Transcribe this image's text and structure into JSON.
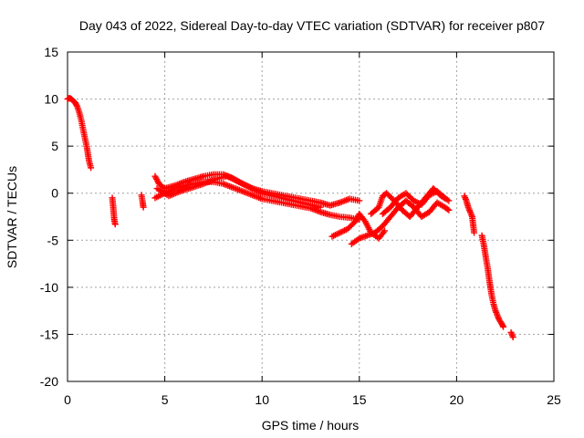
{
  "chart_data": {
    "type": "scatter",
    "title": "Day 043 of 2022, Sidereal Day-to-day VTEC variation (SDTVAR) for receiver p807",
    "xlabel": "GPS time / hours",
    "ylabel": "SDTVAR / TECUs",
    "xlim": [
      0,
      25
    ],
    "ylim": [
      -20,
      15
    ],
    "xticks": [
      "0",
      "5",
      "10",
      "15",
      "20",
      "25"
    ],
    "yticks": [
      "-20",
      "-15",
      "-10",
      "-5",
      "0",
      "5",
      "10",
      "15"
    ],
    "grid": true,
    "marker": "+",
    "color": "#ff0000",
    "series": [
      {
        "name": "SDTVAR",
        "segments": [
          [
            [
              0.0,
              10.0
            ],
            [
              0.1,
              10.1
            ],
            [
              0.2,
              10.0
            ],
            [
              0.3,
              9.8
            ],
            [
              0.4,
              9.6
            ],
            [
              0.5,
              9.2
            ],
            [
              0.6,
              8.6
            ],
            [
              0.7,
              7.8
            ],
            [
              0.8,
              6.8
            ],
            [
              0.9,
              5.8
            ],
            [
              1.0,
              4.8
            ],
            [
              1.1,
              3.5
            ],
            [
              1.2,
              2.7
            ]
          ],
          [
            [
              2.3,
              -0.5
            ],
            [
              2.35,
              -1.5
            ],
            [
              2.4,
              -2.8
            ],
            [
              2.45,
              -3.3
            ]
          ],
          [
            [
              3.8,
              -0.2
            ],
            [
              3.85,
              -0.8
            ],
            [
              3.9,
              -1.5
            ]
          ],
          [
            [
              4.5,
              1.8
            ],
            [
              4.7,
              1.0
            ],
            [
              5.0,
              0.5
            ],
            [
              5.5,
              0.8
            ],
            [
              6.0,
              1.2
            ],
            [
              6.5,
              1.5
            ],
            [
              7.0,
              1.8
            ],
            [
              7.5,
              2.0
            ],
            [
              8.0,
              2.0
            ],
            [
              8.5,
              1.6
            ],
            [
              9.0,
              1.0
            ],
            [
              9.5,
              0.5
            ],
            [
              10.0,
              0.2
            ],
            [
              10.5,
              0.0
            ],
            [
              11.0,
              -0.2
            ],
            [
              11.5,
              -0.4
            ],
            [
              12.0,
              -0.6
            ],
            [
              12.5,
              -0.8
            ],
            [
              13.0,
              -1.0
            ],
            [
              13.5,
              -1.3
            ],
            [
              14.0,
              -1.0
            ],
            [
              14.5,
              -0.6
            ],
            [
              15.0,
              -0.8
            ]
          ],
          [
            [
              4.5,
              -0.5
            ],
            [
              5.0,
              0.0
            ],
            [
              5.5,
              0.5
            ],
            [
              6.0,
              0.8
            ],
            [
              6.5,
              1.0
            ],
            [
              7.0,
              1.2
            ],
            [
              7.5,
              1.2
            ],
            [
              8.0,
              1.0
            ],
            [
              8.5,
              0.6
            ],
            [
              9.0,
              0.2
            ],
            [
              9.5,
              -0.2
            ],
            [
              10.0,
              -0.6
            ],
            [
              10.5,
              -0.8
            ],
            [
              11.0,
              -1.0
            ],
            [
              11.5,
              -1.2
            ],
            [
              12.0,
              -1.4
            ],
            [
              12.5,
              -1.6
            ],
            [
              13.0,
              -2.0
            ],
            [
              13.5,
              -2.3
            ],
            [
              14.0,
              -2.5
            ],
            [
              14.5,
              -2.6
            ],
            [
              15.0,
              -2.8
            ]
          ],
          [
            [
              4.6,
              0.5
            ],
            [
              5.2,
              -0.3
            ],
            [
              5.8,
              0.2
            ],
            [
              6.4,
              0.6
            ],
            [
              7.0,
              1.0
            ],
            [
              7.6,
              1.5
            ],
            [
              8.2,
              1.8
            ],
            [
              8.8,
              1.2
            ],
            [
              9.4,
              0.6
            ],
            [
              10.0,
              0.0
            ],
            [
              10.6,
              -0.3
            ],
            [
              11.2,
              -0.6
            ],
            [
              11.8,
              -0.9
            ],
            [
              12.4,
              -1.2
            ],
            [
              13.0,
              -1.5
            ]
          ],
          [
            [
              13.6,
              -4.6
            ],
            [
              14.0,
              -4.2
            ],
            [
              14.4,
              -3.8
            ],
            [
              14.8,
              -3.0
            ],
            [
              15.0,
              -2.2
            ],
            [
              15.3,
              -3.0
            ],
            [
              15.6,
              -4.2
            ],
            [
              16.0,
              -4.8
            ],
            [
              16.3,
              -4.0
            ]
          ],
          [
            [
              14.6,
              -5.4
            ],
            [
              15.0,
              -4.8
            ],
            [
              15.4,
              -4.5
            ],
            [
              15.8,
              -4.2
            ],
            [
              16.2,
              -3.5
            ],
            [
              16.6,
              -2.5
            ],
            [
              17.0,
              -1.5
            ],
            [
              17.4,
              -0.8
            ],
            [
              17.8,
              -1.5
            ],
            [
              18.2,
              -2.5
            ],
            [
              18.6,
              -2.0
            ],
            [
              19.0,
              -1.0
            ],
            [
              19.4,
              -1.5
            ],
            [
              19.6,
              -1.8
            ]
          ],
          [
            [
              15.6,
              -2.2
            ],
            [
              16.0,
              -1.5
            ],
            [
              16.2,
              -0.3
            ],
            [
              16.4,
              0.0
            ],
            [
              16.8,
              -0.8
            ],
            [
              17.2,
              -1.8
            ],
            [
              17.6,
              -2.5
            ],
            [
              18.0,
              -1.5
            ],
            [
              18.4,
              -0.5
            ],
            [
              18.8,
              0.5
            ],
            [
              19.2,
              -0.3
            ],
            [
              19.6,
              -0.8
            ]
          ],
          [
            [
              16.2,
              -2.2
            ],
            [
              16.6,
              -1.5
            ],
            [
              17.0,
              -0.5
            ],
            [
              17.4,
              0.0
            ],
            [
              17.8,
              -0.8
            ],
            [
              18.2,
              -1.2
            ],
            [
              18.6,
              -0.2
            ],
            [
              19.0,
              0.2
            ],
            [
              19.4,
              -0.5
            ]
          ],
          [
            [
              20.4,
              -0.3
            ],
            [
              20.5,
              -0.8
            ],
            [
              20.6,
              -1.5
            ],
            [
              20.7,
              -2.0
            ],
            [
              20.8,
              -2.5
            ],
            [
              20.9,
              -4.2
            ]
          ],
          [
            [
              21.3,
              -4.5
            ],
            [
              21.4,
              -5.5
            ],
            [
              21.5,
              -6.8
            ],
            [
              21.6,
              -8.0
            ],
            [
              21.7,
              -9.5
            ],
            [
              21.8,
              -10.8
            ],
            [
              21.9,
              -11.8
            ],
            [
              22.0,
              -12.5
            ],
            [
              22.1,
              -13.0
            ],
            [
              22.2,
              -13.5
            ],
            [
              22.3,
              -13.8
            ],
            [
              22.4,
              -14.2
            ]
          ],
          [
            [
              22.8,
              -14.8
            ],
            [
              22.9,
              -15.3
            ]
          ]
        ]
      }
    ]
  }
}
